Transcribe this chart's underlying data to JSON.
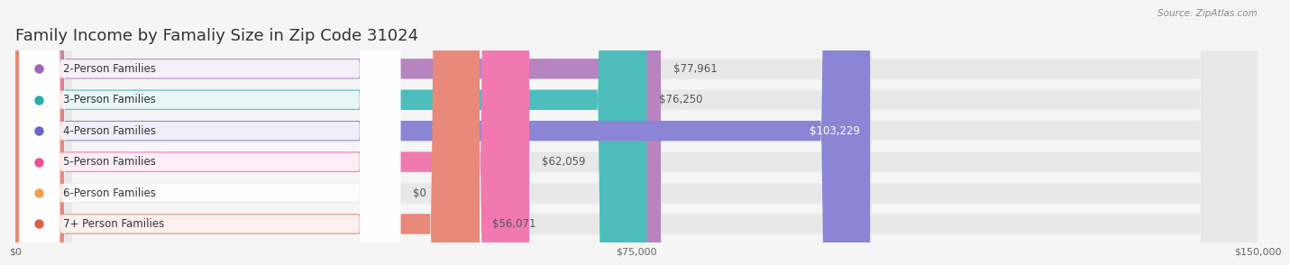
{
  "title": "Family Income by Famaliy Size in Zip Code 31024",
  "source": "Source: ZipAtlas.com",
  "categories": [
    "2-Person Families",
    "3-Person Families",
    "4-Person Families",
    "5-Person Families",
    "6-Person Families",
    "7+ Person Families"
  ],
  "values": [
    77961,
    76250,
    103229,
    62059,
    0,
    56071
  ],
  "bar_colors": [
    "#b784c0",
    "#4dbdbb",
    "#8a85d4",
    "#f07ab0",
    "#f5c497",
    "#e8897a"
  ],
  "dot_colors": [
    "#a066b0",
    "#2aacaa",
    "#6b64c8",
    "#ee5090",
    "#f0a050",
    "#e06050"
  ],
  "bg_color": "#f5f5f5",
  "bar_bg_color": "#e8e8e8",
  "xlim": [
    0,
    150000
  ],
  "xtick_labels": [
    "$0",
    "$75,000",
    "$150,000"
  ],
  "title_fontsize": 13,
  "label_fontsize": 8.5,
  "value_fontsize": 8.5,
  "source_fontsize": 7.5
}
